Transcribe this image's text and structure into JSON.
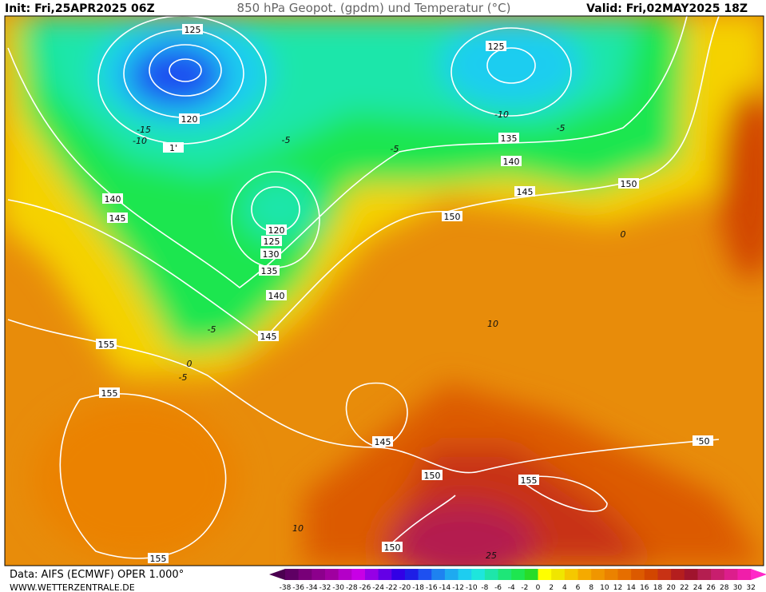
{
  "header": {
    "init": "Init: Fri,25APR2025 06Z",
    "title": "850 hPa Geopot. (gpdm) und Temperatur (°C)",
    "valid": "Valid: Fri,02MAY2025 18Z"
  },
  "footer": {
    "data_source": "Data: AIFS (ECMWF) OPER 1.000°",
    "website": "WWW.WETTERZENTRALE.DE"
  },
  "contour_labels": {
    "geopotential": [
      "125",
      "120",
      "1'",
      "125",
      "135",
      "140",
      "145",
      "150",
      "150",
      "140",
      "145",
      "120",
      "125",
      "130",
      "135",
      "140",
      "145",
      "155",
      "155",
      "145",
      "150",
      "155",
      "150",
      "155",
      "'50"
    ],
    "temperature": [
      "-15",
      "-10",
      "-5",
      "-5",
      "-5",
      "-10",
      "0",
      "-5",
      "0",
      "-5",
      "10",
      "10",
      "25"
    ]
  },
  "colorbar": {
    "ticks": [
      -38,
      -36,
      -34,
      -32,
      -30,
      -28,
      -26,
      -24,
      -22,
      -20,
      -18,
      -16,
      -14,
      -12,
      -10,
      -8,
      -6,
      -4,
      -2,
      0,
      2,
      4,
      6,
      8,
      10,
      12,
      14,
      16,
      18,
      20,
      22,
      24,
      26,
      28,
      30,
      32
    ],
    "colors": [
      "#4b0050",
      "#5f0064",
      "#780078",
      "#8c008c",
      "#a000a0",
      "#b400c8",
      "#c800e6",
      "#9600e6",
      "#6400e6",
      "#3200e6",
      "#1e1ee6",
      "#1e50f0",
      "#1e82f0",
      "#1eaaf0",
      "#1ecdf0",
      "#1ee6dc",
      "#1ee6aa",
      "#1ee678",
      "#1ee650",
      "#28dc28",
      "#ffff00",
      "#f0e600",
      "#f5c800",
      "#f5aa00",
      "#f09600",
      "#eb8200",
      "#e66e00",
      "#dc5a00",
      "#d24600",
      "#c83214",
      "#b41e1e",
      "#a0142d",
      "#b41e50",
      "#c81e6e",
      "#dc1e8c",
      "#f01eaa",
      "#ff28c8"
    ]
  }
}
